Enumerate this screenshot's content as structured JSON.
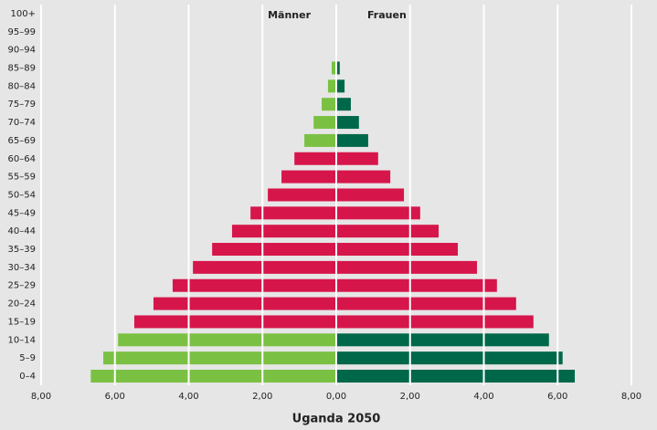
{
  "chart_data": {
    "type": "pyramid",
    "title": "Uganda 2050",
    "categories": [
      "0–4",
      "5–9",
      "10–14",
      "15–19",
      "20–24",
      "25–29",
      "30–34",
      "35–39",
      "40–44",
      "45–49",
      "50–54",
      "55–59",
      "60–64",
      "65–69",
      "70–74",
      "75–79",
      "80–84",
      "85–89",
      "90–94",
      "95–99",
      "100+"
    ],
    "series": [
      {
        "name": "Männer",
        "side": "left",
        "colors": [
          "#7ac143",
          "#7ac143",
          "#7ac143",
          "#d6164b",
          "#d6164b",
          "#d6164b",
          "#d6164b",
          "#d6164b",
          "#d6164b",
          "#d6164b",
          "#d6164b",
          "#d6164b",
          "#d6164b",
          "#7ac143",
          "#7ac143",
          "#7ac143",
          "#7ac143",
          "#7ac143",
          "#7ac143",
          "#7ac143",
          "#7ac143"
        ],
        "values": [
          6.63,
          6.29,
          5.89,
          5.45,
          4.93,
          4.41,
          3.86,
          3.34,
          2.8,
          2.3,
          1.83,
          1.46,
          1.11,
          0.84,
          0.59,
          0.37,
          0.2,
          0.1,
          0,
          0,
          0
        ]
      },
      {
        "name": "Frauen",
        "side": "right",
        "colors": [
          "#00684a",
          "#00684a",
          "#00684a",
          "#d6164b",
          "#d6164b",
          "#d6164b",
          "#d6164b",
          "#d6164b",
          "#d6164b",
          "#d6164b",
          "#d6164b",
          "#d6164b",
          "#d6164b",
          "#00684a",
          "#00684a",
          "#00684a",
          "#00684a",
          "#00684a",
          "#00684a",
          "#00684a",
          "#00684a"
        ],
        "values": [
          6.44,
          6.11,
          5.74,
          5.32,
          4.85,
          4.33,
          3.79,
          3.27,
          2.75,
          2.25,
          1.81,
          1.44,
          1.11,
          0.84,
          0.59,
          0.37,
          0.2,
          0.07,
          0,
          0,
          0
        ]
      }
    ],
    "xlim": [
      -8,
      8
    ],
    "xticks": [
      {
        "value": -8,
        "label": "8,00"
      },
      {
        "value": -6,
        "label": "6,00"
      },
      {
        "value": -4,
        "label": "4,00"
      },
      {
        "value": -2,
        "label": "2,00"
      },
      {
        "value": 0,
        "label": "0,00"
      },
      {
        "value": 2,
        "label": "2,00"
      },
      {
        "value": 4,
        "label": "4,00"
      },
      {
        "value": 6,
        "label": "6,00"
      },
      {
        "value": 8,
        "label": "8,00"
      }
    ],
    "grid": true
  }
}
